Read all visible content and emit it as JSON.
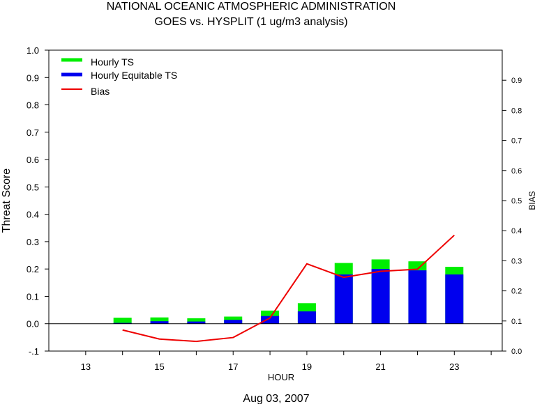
{
  "header": {
    "title": "NATIONAL OCEANIC ATMOSPHERIC ADMINISTRATION",
    "subtitle": "GOES vs. HYSPLIT  (1 ug/m3 analysis)"
  },
  "footer": {
    "date": "Aug 03, 2007"
  },
  "colors": {
    "ts": "#00ee00",
    "ets": "#0000ee",
    "bias": "#ee0000",
    "axis": "#000000"
  },
  "chart_data": {
    "type": "bar",
    "x_axis": {
      "label": "HOUR",
      "min": 12,
      "max": 24.3,
      "tick_labels": [
        "13",
        "15",
        "17",
        "19",
        "21",
        "23"
      ],
      "tick_values": [
        13,
        15,
        17,
        19,
        21,
        23
      ],
      "minor_ticks": [
        14,
        16,
        18,
        20,
        22,
        24
      ]
    },
    "y_axis_left": {
      "label": "Threat Score",
      "min": -0.1,
      "max": 1.0,
      "tick_values": [
        -0.1,
        0.0,
        0.1,
        0.2,
        0.3,
        0.4,
        0.5,
        0.6,
        0.7,
        0.8,
        0.9,
        1.0
      ],
      "tick_labels": [
        "-.1",
        "0.0",
        "0.1",
        "0.2",
        "0.3",
        "0.4",
        "0.5",
        "0.6",
        "0.7",
        "0.8",
        "0.9",
        "1.0"
      ]
    },
    "y_axis_right": {
      "label": "BIAS",
      "min": 0.0,
      "max": 1.0,
      "tick_values": [
        0.0,
        0.1,
        0.2,
        0.3,
        0.4,
        0.5,
        0.6,
        0.7,
        0.8,
        0.9
      ],
      "tick_labels": [
        "0.0",
        "0.1",
        "0.2",
        "0.3",
        "0.4",
        "0.5",
        "0.6",
        "0.7",
        "0.8",
        "0.9"
      ]
    },
    "legend": {
      "position": "top-left",
      "entries": [
        {
          "label": "Hourly TS",
          "series": "ts"
        },
        {
          "label": "Hourly Equitable TS",
          "series": "ets"
        },
        {
          "label": "Bias",
          "series": "bias"
        }
      ]
    },
    "hours": [
      14,
      15,
      16,
      17,
      18,
      19,
      20,
      21,
      22,
      23
    ],
    "series": [
      {
        "id": "ts",
        "values": [
          0.022,
          0.023,
          0.02,
          0.026,
          0.048,
          0.075,
          0.222,
          0.235,
          0.228,
          0.208
        ]
      },
      {
        "id": "ets",
        "values": [
          0.003,
          0.009,
          0.008,
          0.014,
          0.028,
          0.045,
          0.18,
          0.2,
          0.195,
          0.18
        ]
      },
      {
        "id": "bias",
        "values": [
          0.07,
          0.04,
          0.032,
          0.045,
          0.11,
          0.29,
          0.245,
          0.265,
          0.272,
          0.385
        ]
      }
    ],
    "grid": false
  }
}
